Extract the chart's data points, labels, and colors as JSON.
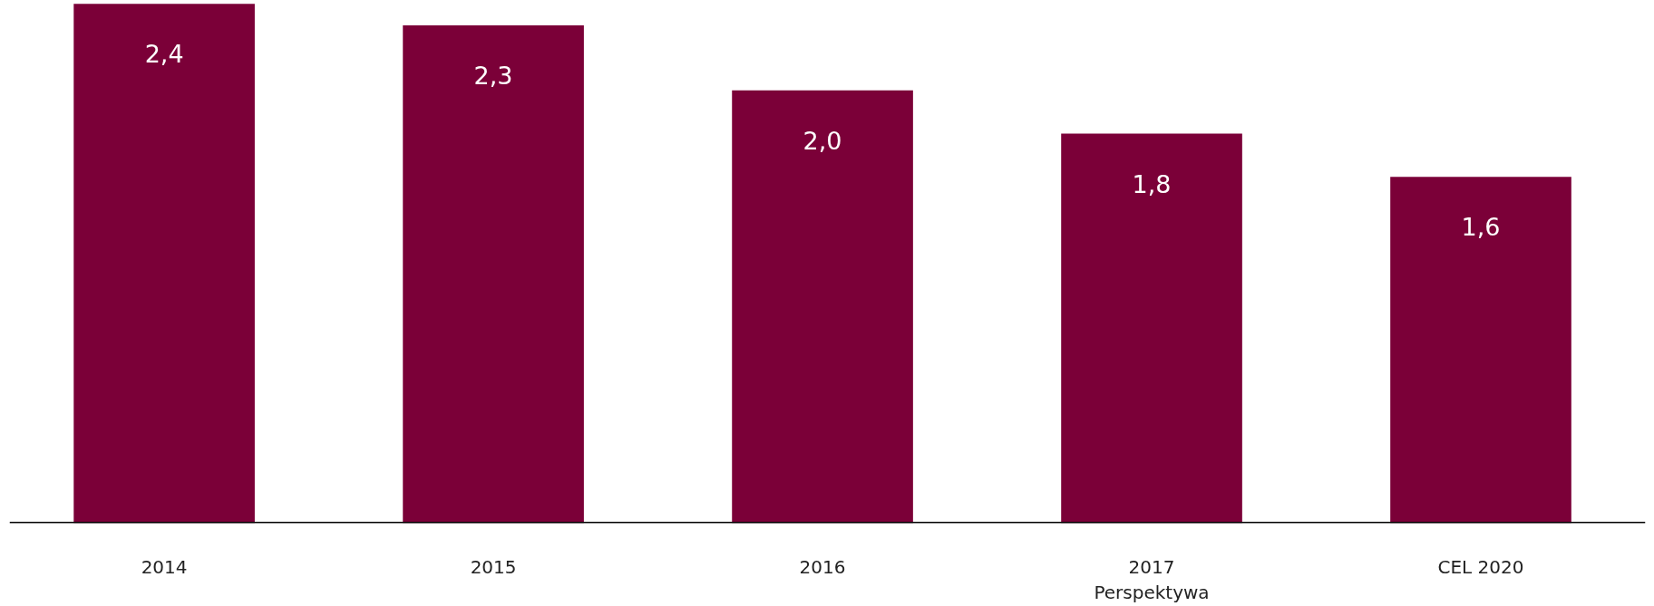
{
  "chart_data": {
    "type": "bar",
    "categories": [
      "2014",
      "2015",
      "2016",
      "2017\nPerspektywa",
      "CEL 2020"
    ],
    "values": [
      2.4,
      2.3,
      2.0,
      1.8,
      1.6
    ],
    "color": "#7b0038",
    "value_labels": [
      "2,4",
      "2,3",
      "2,0",
      "1,8",
      "1,6"
    ],
    "ylim": [
      0,
      2.4
    ],
    "tick_labels": "x"
  }
}
